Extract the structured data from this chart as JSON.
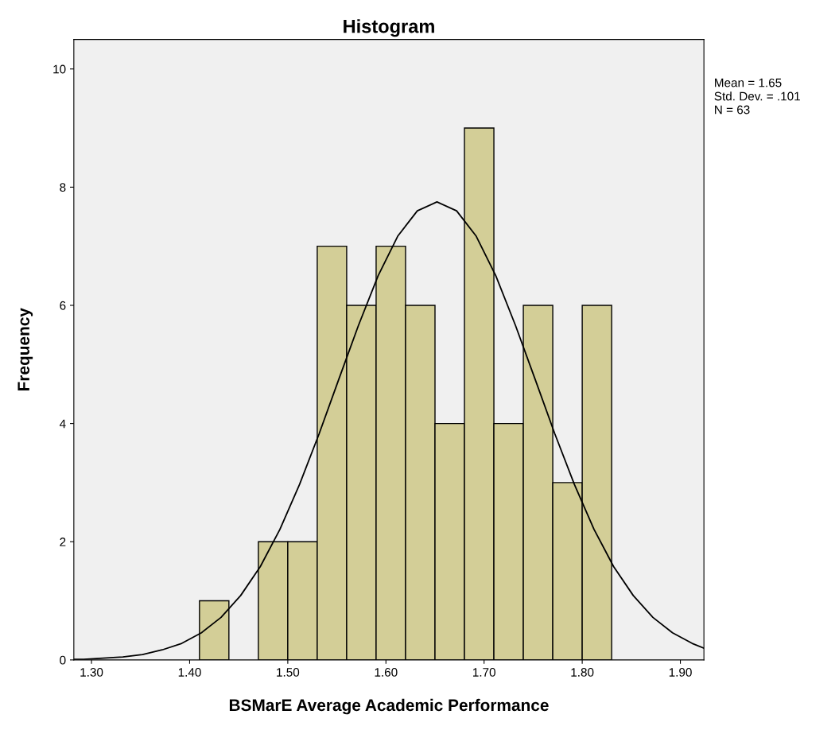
{
  "chart_data": {
    "type": "histogram",
    "title": "Histogram",
    "xlabel": "BSMarE Average Academic Performance",
    "ylabel": "Frequency",
    "series": [
      {
        "color": "#d3ce97",
        "bins": [
          1.41,
          1.44,
          1.47,
          1.5,
          1.53,
          1.56,
          1.59,
          1.62,
          1.65,
          1.68,
          1.71,
          1.74,
          1.77,
          1.8,
          1.83
        ],
        "values": [
          1,
          0,
          2,
          2,
          7,
          6,
          7,
          6,
          4,
          9,
          4,
          6,
          3,
          6
        ]
      },
      {
        "type": "line",
        "color": "#000000",
        "x": [
          1.282,
          1.292,
          1.312,
          1.332,
          1.352,
          1.372,
          1.392,
          1.412,
          1.432,
          1.452,
          1.472,
          1.492,
          1.512,
          1.532,
          1.552,
          1.572,
          1.592,
          1.612,
          1.632,
          1.652,
          1.672,
          1.692,
          1.712,
          1.732,
          1.752,
          1.772,
          1.792,
          1.812,
          1.832,
          1.852,
          1.872,
          1.892,
          1.912,
          1.924
        ],
        "values": [
          0.01,
          0.01,
          0.03,
          0.05,
          0.09,
          0.17,
          0.28,
          0.46,
          0.72,
          1.09,
          1.58,
          2.21,
          2.97,
          3.83,
          4.75,
          5.66,
          6.5,
          7.17,
          7.6,
          7.75,
          7.6,
          7.17,
          6.5,
          5.66,
          4.75,
          3.83,
          2.97,
          2.21,
          1.58,
          1.09,
          0.72,
          0.46,
          0.28,
          0.2
        ]
      }
    ],
    "xlim": [
      1.282,
      1.924
    ],
    "ylim": [
      0,
      10.5
    ],
    "xticks": [
      {
        "value": 1.3,
        "label": "1.30"
      },
      {
        "value": 1.4,
        "label": "1.40"
      },
      {
        "value": 1.5,
        "label": "1.50"
      },
      {
        "value": 1.6,
        "label": "1.60"
      },
      {
        "value": 1.7,
        "label": "1.70"
      },
      {
        "value": 1.8,
        "label": "1.80"
      },
      {
        "value": 1.9,
        "label": "1.90"
      }
    ],
    "yticks": [
      0,
      2,
      4,
      6,
      8,
      10
    ],
    "annotations": [
      "Mean = 1.65",
      "Std. Dev. = .101",
      "N = 63"
    ],
    "grid": false
  }
}
